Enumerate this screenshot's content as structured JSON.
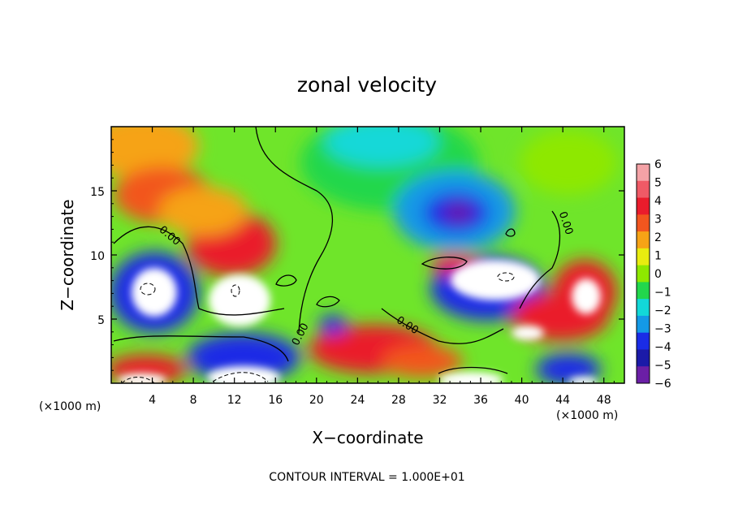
{
  "chart_data": {
    "type": "heatmap",
    "title": "zonal velocity",
    "xlabel": "X−coordinate",
    "ylabel": "Z−coordinate",
    "x_unit_left": "(×1000 m)",
    "x_unit_right": "(×1000 m)",
    "xlim": [
      0,
      50
    ],
    "ylim": [
      0,
      20
    ],
    "xticks": [
      4,
      8,
      12,
      16,
      20,
      24,
      28,
      32,
      36,
      40,
      44,
      48
    ],
    "yticks": [
      5,
      10,
      15
    ],
    "colorbar": {
      "min": -6,
      "max": 6,
      "labels": [
        "6",
        "5",
        "4",
        "3",
        "2",
        "1",
        "0",
        "−1",
        "−2",
        "−3",
        "−4",
        "−5",
        "−6"
      ],
      "colors": [
        "#f4a2a6",
        "#ef5a66",
        "#ea1c2c",
        "#f2561f",
        "#f6a316",
        "#e8ec10",
        "#8ee800",
        "#22d74c",
        "#12d8d8",
        "#1499e6",
        "#1a2ce6",
        "#1b1aa8",
        "#6b1fa6"
      ]
    },
    "contour_labels": [
      {
        "text": "0.00",
        "x": 5.5,
        "y": 11.3,
        "angle": 40
      },
      {
        "text": "0.00",
        "x": 18.7,
        "y": 3.7,
        "angle": -62
      },
      {
        "text": "0.00",
        "x": 28.7,
        "y": 4.3,
        "angle": 32
      },
      {
        "text": "0.00",
        "x": 44.0,
        "y": 12.4,
        "angle": 72
      }
    ],
    "annotation": "CONTOUR INTERVAL = 1.000E+01"
  }
}
